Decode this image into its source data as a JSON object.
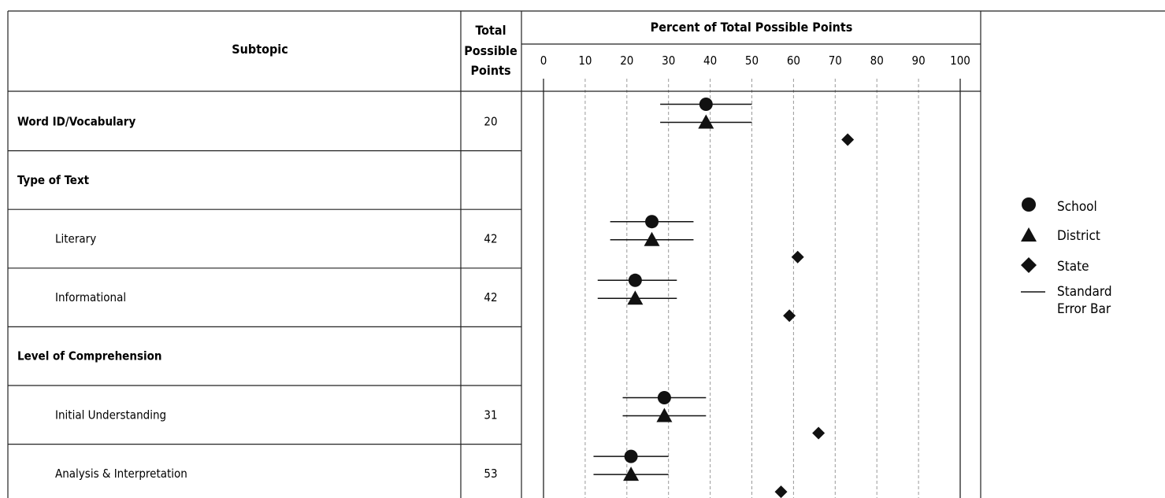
{
  "header": {
    "subtopic": "Subtopic",
    "total_line1": "Total",
    "total_line2": "Possible",
    "total_line3": "Points",
    "percent_title": "Percent of Total Possible Points"
  },
  "legend": {
    "school": "School",
    "district": "District",
    "state": "State",
    "se_line1": "Standard",
    "se_line2": "Error Bar"
  },
  "chart_data": {
    "type": "scatter",
    "title": "Percent of Total Possible Points",
    "xlim": [
      0,
      100
    ],
    "ticks": [
      "0",
      "10",
      "20",
      "30",
      "40",
      "50",
      "60",
      "70",
      "80",
      "90",
      "100"
    ],
    "grid": true,
    "legend_position": "right",
    "rows": [
      {
        "label": "Word ID/Vocabulary",
        "points": "20",
        "bold": true,
        "indent": false,
        "school": 39,
        "school_err": [
          28,
          50
        ],
        "district": 39,
        "district_err": [
          28,
          50
        ],
        "state": 73
      },
      {
        "label": "Type of Text",
        "points": "",
        "bold": true,
        "indent": false
      },
      {
        "label": "Literary",
        "points": "42",
        "bold": false,
        "indent": true,
        "school": 26,
        "school_err": [
          16,
          36
        ],
        "district": 26,
        "district_err": [
          16,
          36
        ],
        "state": 61
      },
      {
        "label": "Informational",
        "points": "42",
        "bold": false,
        "indent": true,
        "school": 22,
        "school_err": [
          13,
          32
        ],
        "district": 22,
        "district_err": [
          13,
          32
        ],
        "state": 59
      },
      {
        "label": "Level of Comprehension",
        "points": "",
        "bold": true,
        "indent": false
      },
      {
        "label": "Initial Understanding",
        "points": "31",
        "bold": false,
        "indent": true,
        "school": 29,
        "school_err": [
          19,
          39
        ],
        "district": 29,
        "district_err": [
          19,
          39
        ],
        "state": 66
      },
      {
        "label": "Analysis & Interpretation",
        "points": "53",
        "bold": false,
        "indent": true,
        "school": 21,
        "school_err": [
          12,
          30
        ],
        "district": 21,
        "district_err": [
          12,
          30
        ],
        "state": 57
      }
    ]
  }
}
